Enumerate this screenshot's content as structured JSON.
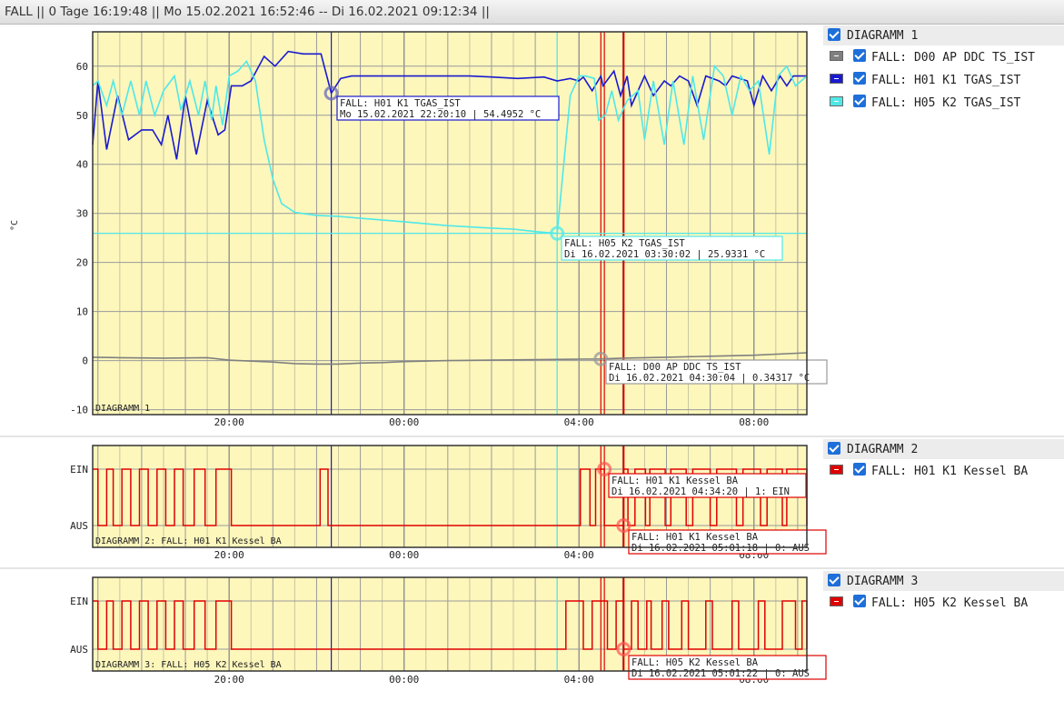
{
  "header": {
    "title": "FALL || 0 Tage 16:19:48 || Mo 15.02.2021 16:52:46 -- Di 16.02.2021 09:12:34 ||"
  },
  "colors": {
    "plot_bg": "#fdf7bc",
    "grid": "#9a9a9a",
    "d00": "#808080",
    "h01": "#1a1ad0",
    "h05": "#4fe8e8",
    "kessel": "#e00000"
  },
  "legend": [
    {
      "header": "DIAGRAMM 1",
      "items": [
        {
          "label": "FALL: D00 AP DDC TS_IST",
          "color": "#808080"
        },
        {
          "label": "FALL: H01 K1 TGAS_IST",
          "color": "#1a1ad0"
        },
        {
          "label": "FALL: H05 K2 TGAS_IST",
          "color": "#4fe8e8"
        }
      ]
    },
    {
      "header": "DIAGRAMM 2",
      "items": [
        {
          "label": "FALL: H01 K1 Kessel BA",
          "color": "#e00000"
        }
      ]
    },
    {
      "header": "DIAGRAMM 3",
      "items": [
        {
          "label": "FALL: H05 K2 Kessel BA",
          "color": "#e00000"
        }
      ]
    }
  ],
  "chart_data": [
    {
      "type": "line",
      "title": "DIAGRAMM 1",
      "ylabel": "°C",
      "ylim": [
        -11,
        67
      ],
      "xlim_hours": [
        16.88,
        33.21
      ],
      "x_ticks": [
        {
          "h": 20,
          "label": "20:00"
        },
        {
          "h": 24,
          "label": "00:00"
        },
        {
          "h": 28,
          "label": "04:00"
        },
        {
          "h": 32,
          "label": "08:00"
        }
      ],
      "y_ticks": [
        -10,
        0,
        10,
        20,
        30,
        40,
        50,
        60
      ],
      "cursors": [
        {
          "h": 22.336,
          "color": "#1a1ad0"
        },
        {
          "h": 27.5,
          "color": "#4fe8e8"
        },
        {
          "h": 28.5,
          "color": "#e00000"
        },
        {
          "h": 28.58,
          "color": "#e00000"
        },
        {
          "h": 29.02,
          "color": "#e00000"
        }
      ],
      "series": [
        {
          "name": "FALL: D00 AP DDC TS_IST",
          "color": "#808080",
          "points": [
            [
              16.88,
              0.7
            ],
            [
              17.5,
              0.6
            ],
            [
              18.5,
              0.5
            ],
            [
              19.5,
              0.6
            ],
            [
              20,
              0.1
            ],
            [
              21,
              -0.3
            ],
            [
              21.5,
              -0.6
            ],
            [
              22,
              -0.7
            ],
            [
              22.5,
              -0.7
            ],
            [
              23,
              -0.5
            ],
            [
              23.5,
              -0.4
            ],
            [
              24,
              -0.2
            ],
            [
              25,
              0
            ],
            [
              26,
              0.1
            ],
            [
              27,
              0.2
            ],
            [
              28,
              0.3
            ],
            [
              28.5,
              0.34
            ],
            [
              29,
              0.5
            ],
            [
              30,
              0.7
            ],
            [
              31,
              0.9
            ],
            [
              32,
              1.1
            ],
            [
              33.21,
              1.6
            ]
          ]
        },
        {
          "name": "FALL: H01 K1 TGAS_IST",
          "color": "#1a1ad0",
          "points": [
            [
              16.88,
              44
            ],
            [
              17.0,
              57
            ],
            [
              17.2,
              43
            ],
            [
              17.45,
              54
            ],
            [
              17.7,
              45
            ],
            [
              18.0,
              47
            ],
            [
              18.25,
              47
            ],
            [
              18.45,
              44
            ],
            [
              18.6,
              50
            ],
            [
              18.8,
              41
            ],
            [
              19.0,
              54
            ],
            [
              19.25,
              42
            ],
            [
              19.5,
              53
            ],
            [
              19.75,
              46
            ],
            [
              19.9,
              47
            ],
            [
              20.05,
              56
            ],
            [
              20.3,
              56
            ],
            [
              20.5,
              57
            ],
            [
              20.8,
              62
            ],
            [
              21.05,
              60
            ],
            [
              21.35,
              63
            ],
            [
              21.7,
              62.5
            ],
            [
              22.1,
              62.5
            ],
            [
              22.336,
              54.5
            ],
            [
              22.55,
              57.5
            ],
            [
              22.8,
              58
            ],
            [
              23.2,
              58
            ],
            [
              23.8,
              58
            ],
            [
              24.3,
              58
            ],
            [
              24.8,
              58
            ],
            [
              25.5,
              58
            ],
            [
              26,
              57.8
            ],
            [
              26.6,
              57.5
            ],
            [
              27.2,
              57.8
            ],
            [
              27.5,
              57
            ],
            [
              27.8,
              57.5
            ],
            [
              28.0,
              57
            ],
            [
              28.1,
              57.8
            ],
            [
              28.3,
              55
            ],
            [
              28.5,
              58
            ],
            [
              28.55,
              56
            ],
            [
              28.8,
              59
            ],
            [
              28.95,
              54
            ],
            [
              29.1,
              58
            ],
            [
              29.2,
              52
            ],
            [
              29.5,
              58
            ],
            [
              29.7,
              54
            ],
            [
              29.95,
              57
            ],
            [
              30.1,
              56
            ],
            [
              30.3,
              58
            ],
            [
              30.5,
              57
            ],
            [
              30.7,
              52
            ],
            [
              30.9,
              58
            ],
            [
              31.2,
              57
            ],
            [
              31.35,
              56
            ],
            [
              31.5,
              58
            ],
            [
              31.85,
              57
            ],
            [
              32.0,
              52
            ],
            [
              32.2,
              58
            ],
            [
              32.4,
              55
            ],
            [
              32.6,
              58
            ],
            [
              32.75,
              56
            ],
            [
              32.9,
              58
            ],
            [
              33.21,
              58
            ]
          ]
        },
        {
          "name": "FALL: H05 K2 TGAS_IST",
          "color": "#4fe8e8",
          "points": [
            [
              16.88,
              56
            ],
            [
              17.0,
              57
            ],
            [
              17.2,
              52
            ],
            [
              17.35,
              57
            ],
            [
              17.55,
              50
            ],
            [
              17.75,
              57
            ],
            [
              17.95,
              50
            ],
            [
              18.1,
              57
            ],
            [
              18.3,
              50
            ],
            [
              18.5,
              55
            ],
            [
              18.75,
              58
            ],
            [
              18.9,
              51
            ],
            [
              19.1,
              57
            ],
            [
              19.3,
              50
            ],
            [
              19.45,
              57
            ],
            [
              19.6,
              49
            ],
            [
              19.7,
              56
            ],
            [
              19.85,
              48
            ],
            [
              20,
              58
            ],
            [
              20.2,
              59
            ],
            [
              20.4,
              61
            ],
            [
              20.6,
              57
            ],
            [
              20.8,
              45
            ],
            [
              21.0,
              37
            ],
            [
              21.2,
              32
            ],
            [
              21.5,
              30.2
            ],
            [
              22,
              29.6
            ],
            [
              22.5,
              29.4
            ],
            [
              23,
              29
            ],
            [
              24,
              28.3
            ],
            [
              25,
              27.5
            ],
            [
              26,
              27
            ],
            [
              26.5,
              26.8
            ],
            [
              27,
              26.3
            ],
            [
              27.5,
              25.93
            ],
            [
              27.8,
              54
            ],
            [
              28,
              58
            ],
            [
              28.15,
              58
            ],
            [
              28.35,
              57.5
            ],
            [
              28.45,
              49
            ],
            [
              28.6,
              50
            ],
            [
              28.75,
              55
            ],
            [
              28.9,
              49
            ],
            [
              29.1,
              53
            ],
            [
              29.35,
              55
            ],
            [
              29.5,
              45
            ],
            [
              29.7,
              57
            ],
            [
              29.95,
              44
            ],
            [
              30.15,
              57
            ],
            [
              30.4,
              44
            ],
            [
              30.6,
              58
            ],
            [
              30.85,
              45
            ],
            [
              31.1,
              60
            ],
            [
              31.3,
              58
            ],
            [
              31.5,
              50
            ],
            [
              31.7,
              58
            ],
            [
              31.9,
              55
            ],
            [
              32.1,
              57
            ],
            [
              32.35,
              42
            ],
            [
              32.55,
              58
            ],
            [
              32.75,
              60
            ],
            [
              32.95,
              56
            ],
            [
              33.21,
              58
            ]
          ]
        }
      ],
      "markers": [
        {
          "h": 22.336,
          "v": 54.4952,
          "color": "#6a6ab8",
          "label1": "FALL: H01 K1 TGAS_IST",
          "label2": "Mo 15.02.2021 22:20:10 | 54.4952 °C",
          "bx": 371,
          "by": 106,
          "bw": 244,
          "bc": "#1a1ad0"
        },
        {
          "h": 27.5,
          "v": 25.9331,
          "color": "#4fe8e8",
          "label1": "FALL: H05 K2 TGAS_IST",
          "label2": "Di 16.02.2021 03:30:02 | 25.9331 °C",
          "bx": 618,
          "by": 260,
          "bw": 243,
          "bc": "#4fe8e8"
        },
        {
          "h": 28.5,
          "v": 0.34317,
          "color": "#999999",
          "label1": "FALL: D00 AP DDC TS_IST",
          "label2": "Di 16.02.2021 04:30:04 | 0.34317 °C",
          "bx": 667,
          "by": 396,
          "bw": 243,
          "bc": "#9a9a9a"
        }
      ],
      "hline": {
        "v": 25.9331,
        "color": "#4fe8e8"
      }
    },
    {
      "type": "line",
      "title": "DIAGRAMM 2: FALL: H01 K1 Kessel BA",
      "y_categories": [
        "AUS",
        "EIN"
      ],
      "x_ticks": [
        {
          "h": 20,
          "label": "20:00"
        },
        {
          "h": 24,
          "label": "00:00"
        },
        {
          "h": 28,
          "label": "04:00"
        },
        {
          "h": 32,
          "label": "08:00"
        }
      ],
      "series": [
        {
          "name": "FALL: H01 K1 Kessel BA",
          "color": "#e00000",
          "transitions_hours": [
            16.88,
            17.0,
            17.2,
            17.35,
            17.55,
            17.75,
            17.95,
            18.15,
            18.35,
            18.55,
            18.75,
            18.95,
            19.2,
            19.45,
            19.7,
            20.05,
            22.08,
            22.26,
            28.03,
            28.25,
            28.38,
            28.58,
            29.02,
            29.12,
            29.28,
            29.52,
            29.62,
            29.97,
            30.1,
            30.45,
            30.6,
            31.0,
            31.15,
            31.6,
            31.75,
            32.15,
            32.3,
            32.65,
            32.75,
            33.21
          ]
        }
      ],
      "markers": [
        {
          "h": 28.58,
          "state": "EIN",
          "label1": "FALL: H01 K1 Kessel BA",
          "label2": "Di 16.02.2021 04:34:20 | 1: EIN",
          "bx": 670,
          "by": 521,
          "bw": 217,
          "bc": "#e00000"
        },
        {
          "h": 29.02,
          "state": "AUS",
          "label1": "FALL: H01 K1 Kessel BA",
          "label2": "Di 16.02.2021 05:01:18 | 0: AUS",
          "bx": 692,
          "by": 583,
          "bw": 217,
          "bc": "#e00000"
        }
      ]
    },
    {
      "type": "line",
      "title": "DIAGRAMM 3: FALL: H05 K2 Kessel BA",
      "y_categories": [
        "AUS",
        "EIN"
      ],
      "x_ticks": [
        {
          "h": 20,
          "label": "20:00"
        },
        {
          "h": 24,
          "label": "00:00"
        },
        {
          "h": 28,
          "label": "04:00"
        },
        {
          "h": 32,
          "label": "08:00"
        }
      ],
      "series": [
        {
          "name": "FALL: H05 K2 Kessel BA",
          "color": "#e00000",
          "transitions_hours": [
            16.88,
            17.0,
            17.2,
            17.35,
            17.55,
            17.75,
            17.95,
            18.15,
            18.35,
            18.55,
            18.75,
            18.95,
            19.2,
            19.45,
            19.7,
            20.05,
            27.7,
            28.1,
            28.3,
            28.65,
            28.85,
            29.02,
            29.2,
            29.35,
            29.55,
            29.65,
            29.9,
            30.05,
            30.35,
            30.5,
            30.9,
            31.05,
            31.5,
            31.65,
            32.1,
            32.25,
            32.65,
            32.95,
            33.1,
            33.21
          ]
        }
      ],
      "markers": [
        {
          "h": 29.02,
          "state": "AUS",
          "label1": "FALL: H05 K2 Kessel BA",
          "label2": "Di 16.02.2021 05:01:22 | 0: AUS",
          "bx": 692,
          "by": 721,
          "bw": 217,
          "bc": "#e00000"
        }
      ]
    }
  ]
}
